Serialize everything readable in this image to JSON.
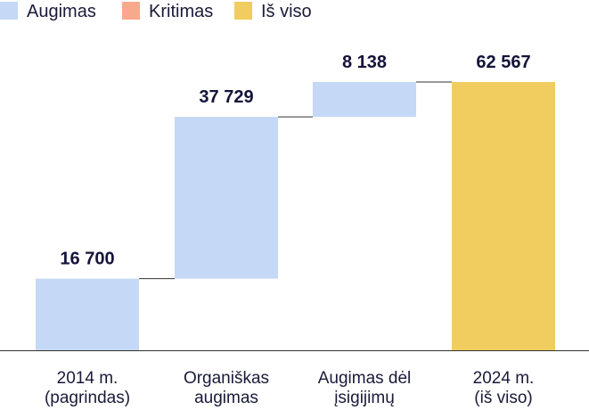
{
  "chart_data": {
    "type": "bar",
    "subtype": "waterfall",
    "legend": {
      "placement": "top-left",
      "items": [
        {
          "key": "increase",
          "label": "Augimas",
          "color": "#c5d8f5"
        },
        {
          "key": "decrease",
          "label": "Kritimas",
          "color": "#f8a98c"
        },
        {
          "key": "total",
          "label": "Iš viso",
          "color": "#f0cd5e"
        }
      ]
    },
    "categories": [
      {
        "lines": [
          "2014 m.",
          "(pagrindas)"
        ]
      },
      {
        "lines": [
          "Organiškas",
          "augimas"
        ]
      },
      {
        "lines": [
          "Augimas dėl",
          "įsigijimų"
        ]
      },
      {
        "lines": [
          "2024 m.",
          "(iš viso)"
        ]
      }
    ],
    "bars": [
      {
        "kind": "increase",
        "start": 0,
        "value": 16700,
        "label": "16 700"
      },
      {
        "kind": "increase",
        "start": 16700,
        "value": 37729,
        "label": "37 729"
      },
      {
        "kind": "increase",
        "start": 54429,
        "value": 8138,
        "label": "8 138"
      },
      {
        "kind": "total",
        "start": 0,
        "value": 62567,
        "label": "62 567"
      }
    ],
    "ylim": [
      0,
      62567
    ],
    "grid": false,
    "colors": {
      "axis": "#333333",
      "connector": "#333333"
    }
  }
}
